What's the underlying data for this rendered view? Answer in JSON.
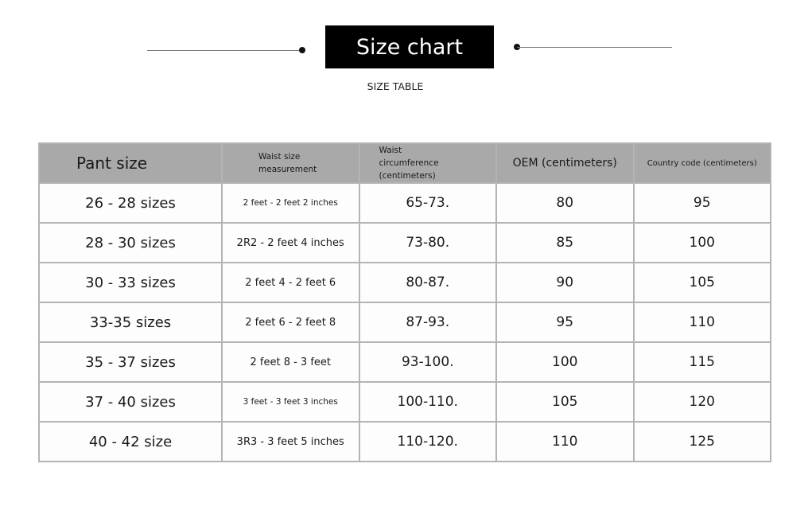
{
  "header": {
    "title": "Size chart",
    "subtitle": "SIZE TABLE"
  },
  "table": {
    "columns": [
      "Pant size",
      "Waist size measurement",
      "Waist circumference (centimeters)",
      "OEM (centimeters)",
      "Country code (centimeters)"
    ],
    "rows": [
      [
        "26 - 28 sizes",
        "2 feet - 2 feet 2 inches",
        "65-73.",
        "80",
        "95"
      ],
      [
        "28 - 30 sizes",
        "2R2 - 2 feet 4 inches",
        "73-80.",
        "85",
        "100"
      ],
      [
        "30 - 33 sizes",
        "2 feet 4 - 2 feet 6",
        "80-87.",
        "90",
        "105"
      ],
      [
        "33-35 sizes",
        "2 feet 6 - 2 feet 8",
        "87-93.",
        "95",
        "110"
      ],
      [
        "35 - 37 sizes",
        "2 feet 8 - 3 feet",
        "93-100.",
        "100",
        "115"
      ],
      [
        "37 - 40 sizes",
        "3 feet - 3 feet 3 inches",
        "100-110.",
        "105",
        "120"
      ],
      [
        "40 - 42 size",
        "3R3 - 3 feet 5 inches",
        "110-120.",
        "110",
        "125"
      ]
    ]
  },
  "colors": {
    "header_bg": "#a9a9a9",
    "title_bg": "#000000",
    "grid": "#b4b4b4"
  }
}
